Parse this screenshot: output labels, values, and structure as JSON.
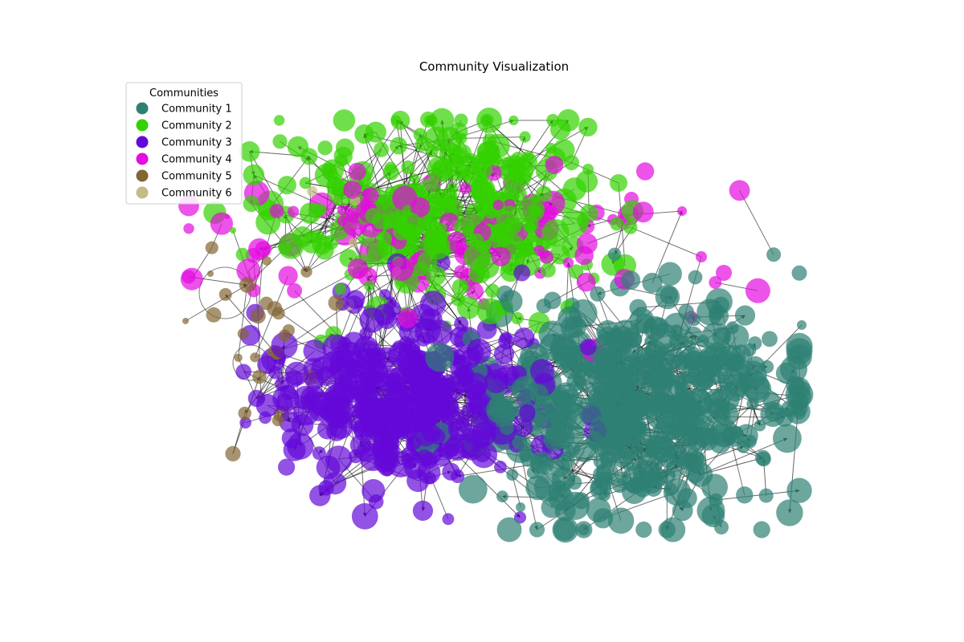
{
  "title": "Community Visualization",
  "legend": {
    "title": "Communities",
    "placement": "upper-left",
    "items": [
      {
        "label": "Community 1",
        "color": "#2e8073"
      },
      {
        "label": "Community 2",
        "color": "#33d100"
      },
      {
        "label": "Community 3",
        "color": "#6408d8"
      },
      {
        "label": "Community 4",
        "color": "#e40ce0"
      },
      {
        "label": "Community 5",
        "color": "#836635"
      },
      {
        "label": "Community 6",
        "color": "#c4bb83"
      }
    ]
  },
  "graph": {
    "directed": true,
    "node_opacity": 0.7,
    "edge_color": "#000000"
  }
}
